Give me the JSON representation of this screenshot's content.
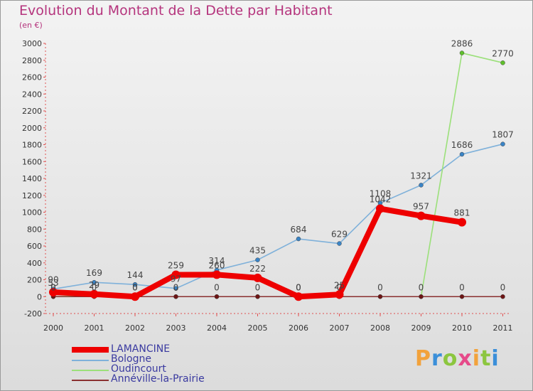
{
  "title": "Evolution du Montant de la Dette par Habitant",
  "subtitle": "(en €)",
  "logo": {
    "text": "Proxiti",
    "colors": [
      "#f2a23c",
      "#3b8fd9",
      "#8cc63f",
      "#e64a8a",
      "#f2a23c",
      "#8cc63f",
      "#3b8fd9"
    ]
  },
  "chart_data": {
    "type": "line",
    "x": [
      "2000",
      "2001",
      "2002",
      "2003",
      "2004",
      "2005",
      "2006",
      "2007",
      "2008",
      "2009",
      "2010",
      "2011"
    ],
    "yticks": [
      "-200",
      "0",
      "200",
      "400",
      "600",
      "800",
      "1000",
      "1200",
      "1400",
      "1600",
      "1800",
      "2000",
      "2200",
      "2400",
      "2600",
      "2800",
      "3000"
    ],
    "ylim": [
      -200,
      3000
    ],
    "grid": false,
    "legend_position": "bottom-left",
    "series": [
      {
        "name": "Bologne",
        "color": "#7fb1da",
        "marker": "#3a84c6",
        "values": [
          90,
          169,
          144,
          97,
          314,
          435,
          684,
          629,
          1108,
          1321,
          1686,
          1807
        ],
        "labels": [
          "90",
          "169",
          "144",
          "97",
          "314",
          "435",
          "684",
          "629",
          "1108",
          "1321",
          "1686",
          "1807"
        ]
      },
      {
        "name": "Oudincourt",
        "color": "#9be07a",
        "marker": "#5fc02c",
        "values": [
          0,
          10,
          0,
          0,
          0,
          0,
          0,
          0,
          0,
          0,
          2886,
          2770
        ],
        "labels": [
          "0",
          "",
          "",
          "",
          "",
          "",
          "",
          "",
          "",
          "",
          "2886",
          "2770"
        ]
      },
      {
        "name": "Annéville-la-Prairie",
        "color": "#8a3030",
        "marker": "#6e1515",
        "values": [
          0,
          0,
          0,
          0,
          0,
          0,
          0,
          0,
          0,
          0,
          0,
          0
        ],
        "labels": [
          "0",
          "0",
          "0",
          "0",
          "0",
          "0",
          "0",
          "0",
          "0",
          "0",
          "0",
          "0"
        ]
      },
      {
        "name": "LAMANCINE",
        "color": "#ee0000",
        "marker": "#ee0000",
        "values": [
          53,
          29,
          0,
          259,
          260,
          222,
          0,
          25,
          1042,
          957,
          881,
          null
        ],
        "labels": [
          "53",
          "29",
          "0",
          "259",
          "260",
          "222",
          "0",
          "25",
          "1042",
          "957",
          "881",
          ""
        ]
      }
    ]
  }
}
